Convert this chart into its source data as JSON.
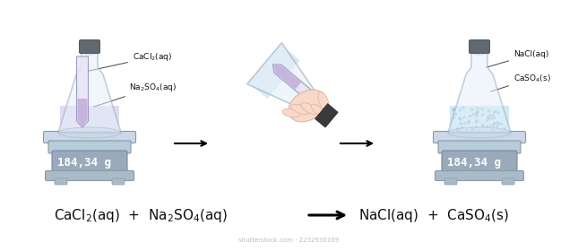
{
  "mass": "184,34 g",
  "bg_color": "#ffffff",
  "label_left1": "CaCl$_2$(aq)",
  "label_left2": "Na$_2$SO$_4$(aq)",
  "label_right1": "NaCl(aq)",
  "label_right2": "CaSO$_4$(s)",
  "shutterstock_text": "shutterstock.com · 2232930169",
  "fig_width": 6.45,
  "fig_height": 2.8,
  "dpi": 100,
  "scale_platform_color": "#ccd8e8",
  "scale_body_color": "#b8ccd8",
  "scale_display_color": "#9aaabb",
  "scale_feet_color": "#aabbc8",
  "flask_fill_color": "#e4f0f8",
  "flask_edge_color": "#9aacbc",
  "liquid_left_color": "#d0c8e8",
  "liquid_right_color": "#b8ddf0",
  "tube_fill_color": "#e8e4f4",
  "tube_liquid_color": "#c0a8d8",
  "stopper_color": "#606870",
  "hand_color": "#f8d8c8",
  "hand_edge_color": "#e0b8a0",
  "arrow_color": "#111111",
  "text_color": "#111111",
  "dot_color": "#8ab8d0"
}
